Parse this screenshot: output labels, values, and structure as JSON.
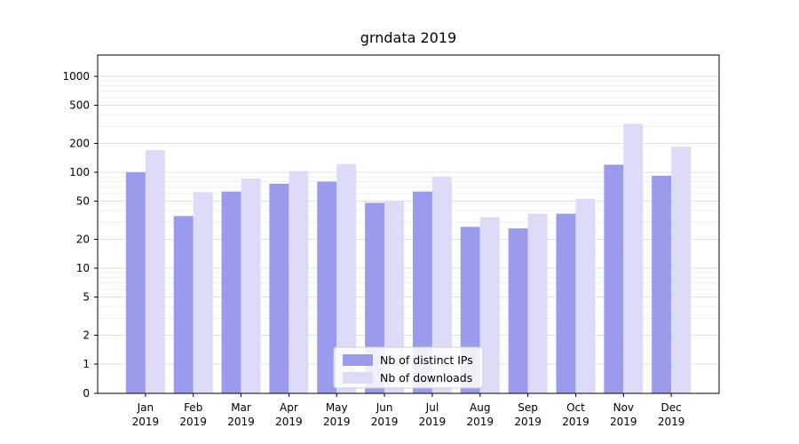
{
  "figure": {
    "background": "#ffffff"
  },
  "chart_data": {
    "type": "bar",
    "title": "grndata 2019",
    "categories": [
      "Jan",
      "Feb",
      "Mar",
      "Apr",
      "May",
      "Jun",
      "Jul",
      "Aug",
      "Sep",
      "Oct",
      "Nov",
      "Dec"
    ],
    "year_label": "2019",
    "series": [
      {
        "name": "Nb of distinct IPs",
        "color": "#9b9bee",
        "values": [
          100,
          35,
          63,
          76,
          80,
          48,
          63,
          27,
          26,
          37,
          120,
          92
        ]
      },
      {
        "name": "Nb of downloads",
        "color": "#dcdcf8",
        "values": [
          170,
          62,
          86,
          103,
          122,
          50,
          90,
          34,
          37,
          53,
          320,
          185
        ]
      }
    ],
    "yscale": "symlog",
    "yticks": [
      0,
      1,
      2,
      5,
      10,
      20,
      50,
      100,
      200,
      500,
      1000
    ],
    "ylim": [
      0,
      1600
    ],
    "xlabel": "",
    "ylabel": "",
    "grid": true,
    "legend_position": "lower center",
    "colors": {
      "major_grid": "#e0e0e0",
      "minor_grid": "#f0f0f0",
      "axis": "#000000",
      "text": "#000000",
      "legend_border": "#cccccc",
      "legend_fill": "#ffffff"
    }
  }
}
